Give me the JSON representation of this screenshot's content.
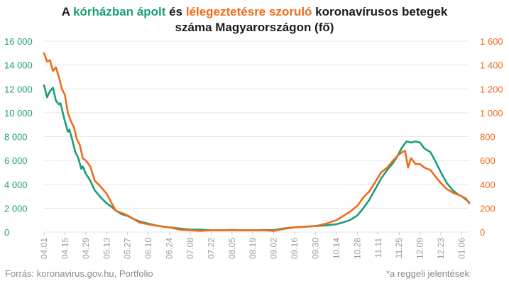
{
  "title": {
    "p1": "A ",
    "g": "kórházban ápolt",
    "p2": " és ",
    "o": "lélegeztetésre szoruló",
    "p3": " koronavírusos betegek",
    "line2": "száma Magyarországon  (fő)"
  },
  "footer": {
    "source": "Forrás: koronavirus.gov.hu, Portfolio",
    "note": "*a reggeli jelentések"
  },
  "colors": {
    "green": "#1a9e7a",
    "orange": "#f26a1b",
    "grid": "#e6e6e6",
    "tick": "#9a9a9a"
  },
  "chart_data": {
    "type": "line",
    "x_tick_labels": [
      "04.01",
      "04.15",
      "04.29",
      "05.13",
      "05.27",
      "06.10",
      "06.24",
      "07.08",
      "07.22",
      "08.05",
      "08.19",
      "09.02",
      "09.16",
      "09.30",
      "10.14",
      "10.28",
      "11.11",
      "11.25",
      "12.09",
      "12.23",
      "01.06"
    ],
    "x_tick_days": [
      0,
      14,
      28,
      42,
      56,
      70,
      84,
      98,
      112,
      126,
      140,
      154,
      168,
      182,
      196,
      210,
      224,
      238,
      252,
      266,
      280
    ],
    "x_range_days": [
      0,
      285
    ],
    "y_left": {
      "label": "",
      "ticks": [
        "0",
        "2 000",
        "4 000",
        "6 000",
        "8 000",
        "10 000",
        "12 000",
        "14 000",
        "16 000"
      ],
      "ylim": [
        0,
        16000
      ]
    },
    "y_right": {
      "label": "",
      "ticks": [
        "0",
        "200",
        "400",
        "600",
        "800",
        "1 000",
        "1 200",
        "1 400",
        "1 600"
      ],
      "ylim": [
        0,
        1600
      ]
    },
    "series": [
      {
        "name": "kórházban ápolt",
        "axis": "left",
        "color": "#1a9e7a",
        "points": [
          [
            0,
            12300
          ],
          [
            2,
            11300
          ],
          [
            4,
            11800
          ],
          [
            6,
            12100
          ],
          [
            8,
            11000
          ],
          [
            10,
            10700
          ],
          [
            11,
            10800
          ],
          [
            14,
            9300
          ],
          [
            16,
            8400
          ],
          [
            17,
            8600
          ],
          [
            19,
            7700
          ],
          [
            21,
            6700
          ],
          [
            23,
            6200
          ],
          [
            25,
            5300
          ],
          [
            26,
            5500
          ],
          [
            28,
            4900
          ],
          [
            31,
            4300
          ],
          [
            34,
            3500
          ],
          [
            38,
            2900
          ],
          [
            42,
            2400
          ],
          [
            45,
            2150
          ],
          [
            48,
            1800
          ],
          [
            52,
            1500
          ],
          [
            56,
            1350
          ],
          [
            60,
            1100
          ],
          [
            64,
            900
          ],
          [
            70,
            700
          ],
          [
            77,
            500
          ],
          [
            84,
            400
          ],
          [
            91,
            300
          ],
          [
            98,
            200
          ],
          [
            105,
            200
          ],
          [
            112,
            150
          ],
          [
            119,
            150
          ],
          [
            126,
            170
          ],
          [
            133,
            150
          ],
          [
            140,
            150
          ],
          [
            147,
            170
          ],
          [
            154,
            160
          ],
          [
            160,
            300
          ],
          [
            168,
            400
          ],
          [
            175,
            450
          ],
          [
            182,
            500
          ],
          [
            189,
            560
          ],
          [
            196,
            660
          ],
          [
            200,
            800
          ],
          [
            205,
            1000
          ],
          [
            210,
            1400
          ],
          [
            214,
            2000
          ],
          [
            218,
            2700
          ],
          [
            222,
            3600
          ],
          [
            226,
            4500
          ],
          [
            230,
            5200
          ],
          [
            234,
            5800
          ],
          [
            237,
            6400
          ],
          [
            240,
            7100
          ],
          [
            243,
            7600
          ],
          [
            246,
            7500
          ],
          [
            249,
            7600
          ],
          [
            252,
            7500
          ],
          [
            255,
            7000
          ],
          [
            259,
            6700
          ],
          [
            262,
            6000
          ],
          [
            266,
            5000
          ],
          [
            270,
            4100
          ],
          [
            274,
            3500
          ],
          [
            278,
            3100
          ],
          [
            280,
            3000
          ],
          [
            283,
            2700
          ],
          [
            285,
            2500
          ]
        ]
      },
      {
        "name": "lélegeztetésre szoruló",
        "axis": "right",
        "color": "#f26a1b",
        "points": [
          [
            0,
            1500
          ],
          [
            2,
            1430
          ],
          [
            4,
            1440
          ],
          [
            6,
            1350
          ],
          [
            8,
            1380
          ],
          [
            10,
            1300
          ],
          [
            12,
            1200
          ],
          [
            14,
            1150
          ],
          [
            16,
            1000
          ],
          [
            18,
            930
          ],
          [
            20,
            880
          ],
          [
            22,
            780
          ],
          [
            24,
            730
          ],
          [
            26,
            620
          ],
          [
            28,
            600
          ],
          [
            31,
            550
          ],
          [
            34,
            430
          ],
          [
            38,
            380
          ],
          [
            42,
            320
          ],
          [
            45,
            250
          ],
          [
            48,
            180
          ],
          [
            52,
            160
          ],
          [
            56,
            140
          ],
          [
            60,
            110
          ],
          [
            64,
            80
          ],
          [
            70,
            65
          ],
          [
            77,
            50
          ],
          [
            84,
            40
          ],
          [
            91,
            20
          ],
          [
            98,
            15
          ],
          [
            105,
            10
          ],
          [
            112,
            15
          ],
          [
            119,
            15
          ],
          [
            126,
            15
          ],
          [
            133,
            15
          ],
          [
            140,
            15
          ],
          [
            147,
            15
          ],
          [
            154,
            10
          ],
          [
            160,
            25
          ],
          [
            168,
            40
          ],
          [
            175,
            45
          ],
          [
            182,
            50
          ],
          [
            189,
            70
          ],
          [
            196,
            100
          ],
          [
            200,
            130
          ],
          [
            205,
            170
          ],
          [
            210,
            220
          ],
          [
            214,
            290
          ],
          [
            218,
            340
          ],
          [
            222,
            420
          ],
          [
            226,
            500
          ],
          [
            230,
            540
          ],
          [
            234,
            600
          ],
          [
            237,
            640
          ],
          [
            240,
            670
          ],
          [
            242,
            680
          ],
          [
            244,
            540
          ],
          [
            246,
            620
          ],
          [
            249,
            570
          ],
          [
            252,
            570
          ],
          [
            255,
            540
          ],
          [
            259,
            520
          ],
          [
            262,
            470
          ],
          [
            266,
            410
          ],
          [
            270,
            360
          ],
          [
            274,
            330
          ],
          [
            278,
            310
          ],
          [
            280,
            300
          ],
          [
            283,
            280
          ],
          [
            285,
            240
          ]
        ]
      }
    ]
  }
}
